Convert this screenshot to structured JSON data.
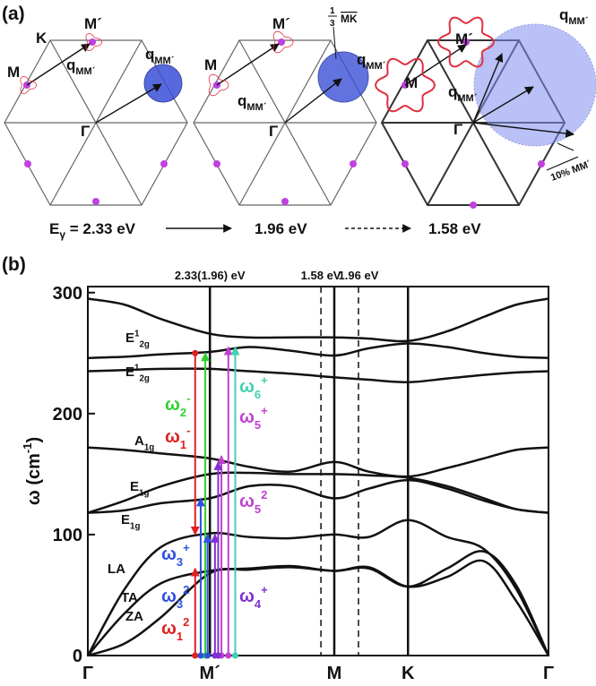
{
  "panel_a": {
    "label": "(a)",
    "d1": {
      "m": "M",
      "k": "K",
      "mp": "M´",
      "q1": {
        "base": "q",
        "sub": "MM´"
      },
      "q2": {
        "base": "q",
        "sub": "MM´"
      },
      "g": "Γ"
    },
    "d2": {
      "m": "M",
      "mp": "M´",
      "q1": {
        "base": "q",
        "sub": "MM´"
      },
      "q2": {
        "base": "q",
        "sub": "MM´"
      },
      "g": "Γ",
      "frac": {
        "num": "1",
        "den": "3",
        "text": "MK"
      }
    },
    "d3": {
      "m": "M",
      "mp": "M´",
      "q1": {
        "base": "q",
        "sub": "MM´"
      },
      "q2": {
        "base": "q",
        "sub": "MM´"
      },
      "g": "Γ",
      "pct": "10% MM´"
    },
    "energies": [
      {
        "base": "E",
        "sub": "γ",
        "rest": " = 2.33 eV"
      },
      "1.96 eV",
      "1.58 eV"
    ]
  },
  "chart_data": {
    "type": "line",
    "label": "(b)",
    "ylabel": {
      "base": "ω (cm",
      "sup": "-1",
      "rest": ")"
    },
    "x": [
      0,
      8,
      16,
      26.5,
      35,
      44,
      53.5,
      61,
      69.5,
      78,
      86,
      93,
      100
    ],
    "xlim": [
      0,
      100
    ],
    "xticks": [
      {
        "value": 0,
        "label": "Γ"
      },
      {
        "value": 26.5,
        "label": "M´"
      },
      {
        "value": 53.5,
        "label": "M"
      },
      {
        "value": 69.5,
        "label": "K"
      },
      {
        "value": 100,
        "label": "Γ"
      }
    ],
    "ylim": [
      0,
      305
    ],
    "yticks": [
      0,
      100,
      200,
      300
    ],
    "markers": [
      {
        "value": 26.5,
        "label": "2.33(1.96) eV",
        "style": "solid"
      },
      {
        "value": 50.6,
        "label": "1.58 eV",
        "style": "dashed"
      },
      {
        "value": 58.75,
        "label": "1.96 eV",
        "style": "dashed"
      }
    ],
    "series": [
      {
        "color": "#111111",
        "values": [
          295,
          290,
          278,
          266,
          263,
          263,
          263,
          262,
          260,
          268,
          280,
          290,
          295
        ]
      },
      {
        "label": {
          "base": "E",
          "sup": "1",
          "sub": "2g"
        },
        "color": "#111111",
        "values": [
          246,
          247,
          249,
          251,
          255,
          252,
          248,
          254,
          258,
          255,
          250,
          247,
          246
        ]
      },
      {
        "label": {
          "base": "E",
          "sup": "1",
          "sub": "2g"
        },
        "color": "#111111",
        "values": [
          235,
          236,
          237,
          237,
          235,
          233,
          230,
          228,
          226,
          229,
          232,
          234,
          235
        ]
      },
      {
        "label": {
          "base": "A",
          "sub": "1g"
        },
        "color": "#111111",
        "values": [
          172,
          170,
          167,
          163,
          156,
          152,
          160,
          152,
          148,
          155,
          163,
          170,
          172
        ]
      },
      {
        "label": {
          "base": "E",
          "sub": "1g"
        },
        "color": "#111111",
        "values": [
          118,
          128,
          140,
          150,
          151,
          150,
          150,
          149,
          147,
          140,
          130,
          121,
          118
        ]
      },
      {
        "label": {
          "base": "E",
          "sub": "1g"
        },
        "color": "#111111",
        "values": [
          118,
          120,
          126,
          130,
          140,
          140,
          130,
          138,
          145,
          138,
          128,
          121,
          118
        ]
      },
      {
        "label": {
          "base": "LA"
        },
        "color": "#111111",
        "values": [
          0,
          55,
          90,
          101,
          98,
          97,
          100,
          98,
          112,
          98,
          88,
          55,
          0
        ]
      },
      {
        "label": {
          "base": "TA"
        },
        "color": "#111111",
        "values": [
          0,
          35,
          60,
          70,
          72,
          74,
          70,
          73,
          57,
          65,
          78,
          45,
          0
        ]
      },
      {
        "label": {
          "base": "ZA"
        },
        "color": "#111111",
        "values": [
          0,
          10,
          32,
          68,
          71,
          73,
          70,
          72,
          57,
          72,
          86,
          58,
          0
        ]
      }
    ],
    "transitions": [
      {
        "color": "#e02020",
        "x": 23.3,
        "from": 250,
        "to": 100
      },
      {
        "color": "#e02020",
        "x": 23.3,
        "from": 0,
        "to": 72
      },
      {
        "color": "#30d030",
        "x": 25.5,
        "from": 0,
        "to": 250
      },
      {
        "color": "#3050e0",
        "x": 24.5,
        "from": 0,
        "to": 130
      },
      {
        "color": "#3050e0",
        "x": 26,
        "from": 0,
        "to": 100
      },
      {
        "color": "#8030d0",
        "x": 27.6,
        "from": 0,
        "to": 100
      },
      {
        "color": "#c040d0",
        "x": 29,
        "from": 0,
        "to": 165
      },
      {
        "color": "#8030d0",
        "x": 28.3,
        "from": 0,
        "to": 160
      },
      {
        "color": "#c040d0",
        "x": 30.5,
        "from": 0,
        "to": 255
      },
      {
        "color": "#40d0b0",
        "x": 32,
        "from": 0,
        "to": 255
      }
    ],
    "transition_labels": [
      {
        "color": "#30d030",
        "text": {
          "base": "ω",
          "sub": "2",
          "sup": "-"
        }
      },
      {
        "color": "#e02020",
        "text": {
          "base": "ω",
          "sub": "1",
          "sup": "-"
        }
      },
      {
        "color": "#40d0b0",
        "text": {
          "base": "ω",
          "sub": "6",
          "sup": "+"
        }
      },
      {
        "color": "#c040d0",
        "text": {
          "base": "ω",
          "sub": "5",
          "sup": "+"
        }
      },
      {
        "color": "#c040d0",
        "text": {
          "base": "ω",
          "sub": "5",
          "sup": "2"
        }
      },
      {
        "color": "#3050e0",
        "text": {
          "base": "ω",
          "sub": "3",
          "sup": "+"
        }
      },
      {
        "color": "#3050e0",
        "text": {
          "base": "ω",
          "sub": "3",
          "sup": "2"
        }
      },
      {
        "color": "#e02020",
        "text": {
          "base": "ω",
          "sub": "1",
          "sup": "2"
        }
      },
      {
        "color": "#8030d0",
        "text": {
          "base": "ω",
          "sub": "4",
          "sup": "+"
        }
      }
    ]
  }
}
